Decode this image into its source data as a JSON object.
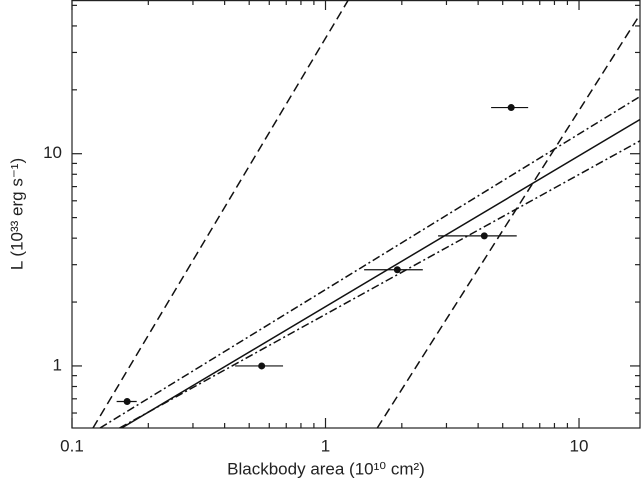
{
  "chart_data": {
    "type": "scatter",
    "x_label": "Blackbody area (10¹⁰ cm²)",
    "y_label": "L (10³³ erg s⁻¹)",
    "log_x": true,
    "log_y": true,
    "xlim": [
      0.1,
      17.4
    ],
    "ylim": [
      0.51,
      53
    ],
    "xticks": [
      0.1,
      1,
      10
    ],
    "yticks": [
      1,
      10
    ],
    "xminor": [
      0.2,
      0.3,
      0.4,
      0.5,
      0.6,
      0.7,
      0.8,
      0.9,
      2,
      3,
      4,
      5,
      6,
      7,
      8,
      9
    ],
    "yminor": [
      0.6,
      0.7,
      0.8,
      0.9,
      2,
      3,
      4,
      5,
      6,
      7,
      8,
      9,
      20,
      30,
      40,
      50
    ],
    "color": "#111111",
    "points": {
      "x": [
        0.165,
        0.56,
        1.92,
        4.23,
        5.4
      ],
      "y": [
        0.68,
        1.0,
        2.84,
        4.1,
        16.5
      ],
      "xerr": [
        0.015,
        0.12,
        0.5,
        1.45,
        0.9
      ]
    },
    "lines": [
      {
        "style": "solid",
        "x": [
          0.157,
          17.4
        ],
        "y": [
          0.51,
          14.5
        ]
      },
      {
        "style": "dashdot",
        "x": [
          0.129,
          17.4
        ],
        "y": [
          0.51,
          18.6
        ]
      },
      {
        "style": "dashdot",
        "x": [
          0.154,
          17.4
        ],
        "y": [
          0.51,
          11.5
        ]
      },
      {
        "style": "dashed",
        "x": [
          0.121,
          1.23
        ],
        "y": [
          0.51,
          53
        ]
      },
      {
        "style": "dashed",
        "x": [
          1.6,
          17.4
        ],
        "y": [
          0.51,
          45.3
        ]
      }
    ]
  }
}
